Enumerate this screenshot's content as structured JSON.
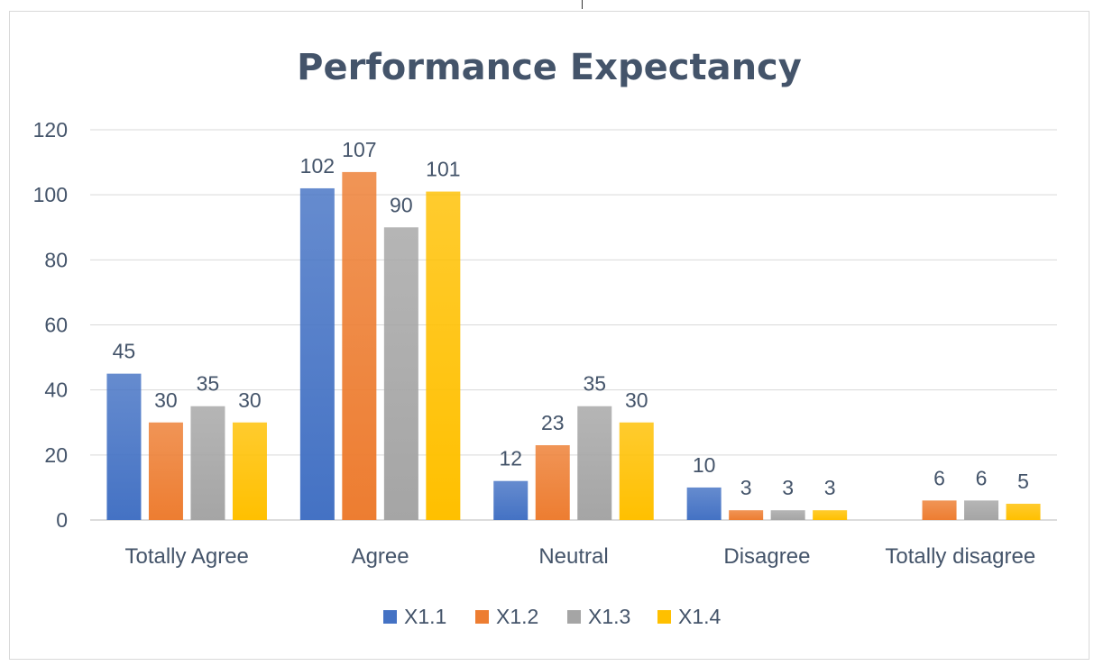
{
  "chart_data": {
    "type": "bar",
    "title": "Performance Expectancy",
    "categories": [
      "Totally Agree",
      "Agree",
      "Neutral",
      "Disagree",
      "Totally disagree"
    ],
    "series": [
      {
        "name": "X1.1",
        "values": [
          45,
          102,
          12,
          10,
          null
        ],
        "color": "#4472c4"
      },
      {
        "name": "X1.2",
        "values": [
          30,
          107,
          23,
          3,
          6
        ],
        "color": "#ed7d31"
      },
      {
        "name": "X1.3",
        "values": [
          35,
          90,
          35,
          3,
          6
        ],
        "color": "#a5a5a5"
      },
      {
        "name": "X1.4",
        "values": [
          30,
          101,
          30,
          3,
          5
        ],
        "color": "#ffc000"
      }
    ],
    "ylim": [
      0,
      120
    ],
    "yticks": [
      0,
      20,
      40,
      60,
      80,
      100,
      120
    ],
    "xlabel": "",
    "ylabel": "",
    "grid": true,
    "legend": "bottom"
  }
}
